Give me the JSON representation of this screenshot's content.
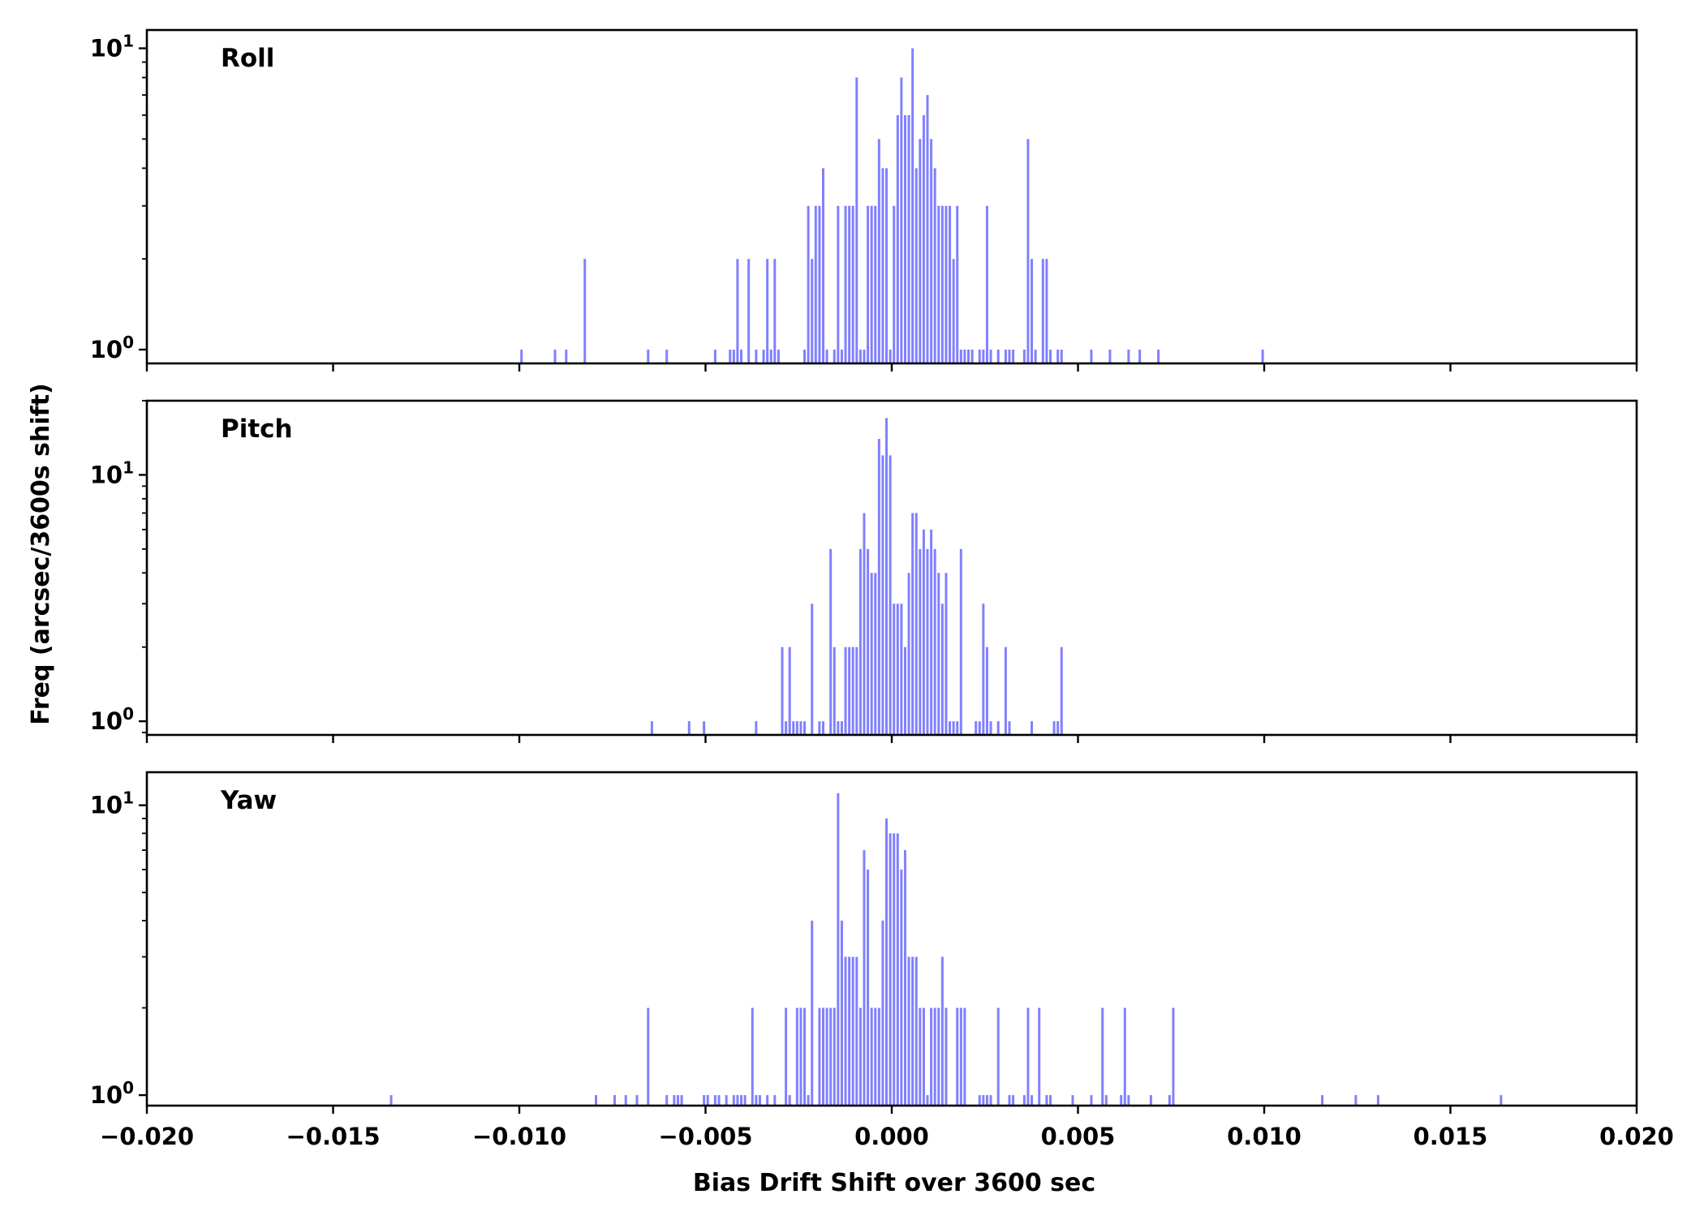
{
  "chart_data": {
    "type": "bar",
    "ylabel": "Freq (arcsec/3600s shift)",
    "xlabel": "Bias Drift Shift over 3600 sec",
    "xlim": [
      -0.02,
      0.02
    ],
    "x_ticks": [
      "−0.020",
      "−0.015",
      "−0.010",
      "−0.005",
      "0.000",
      "0.005",
      "0.010",
      "0.015",
      "0.020"
    ],
    "bin_width": 0.0001,
    "yscale": "log",
    "bar_color": "#8080ff",
    "panels": [
      {
        "name": "Roll",
        "ylim": [
          0.9,
          11.5
        ],
        "y_ticks": [
          {
            "value": 1,
            "exp": "0"
          },
          {
            "value": 10,
            "exp": "1"
          }
        ],
        "bins": [
          [
            -0.01,
            1
          ],
          [
            -0.0091,
            1
          ],
          [
            -0.0088,
            1
          ],
          [
            -0.0083,
            2
          ],
          [
            -0.0066,
            1
          ],
          [
            -0.0061,
            1
          ],
          [
            -0.0048,
            1
          ],
          [
            -0.0044,
            1
          ],
          [
            -0.0043,
            1
          ],
          [
            -0.0042,
            2
          ],
          [
            -0.0041,
            1
          ],
          [
            -0.0039,
            2
          ],
          [
            -0.0037,
            1
          ],
          [
            -0.0035,
            1
          ],
          [
            -0.0034,
            2
          ],
          [
            -0.0033,
            1
          ],
          [
            -0.0032,
            2
          ],
          [
            -0.0031,
            1
          ],
          [
            -0.0024,
            1
          ],
          [
            -0.0023,
            3
          ],
          [
            -0.0022,
            2
          ],
          [
            -0.0021,
            3
          ],
          [
            -0.002,
            3
          ],
          [
            -0.0019,
            4
          ],
          [
            -0.0018,
            1
          ],
          [
            -0.0016,
            1
          ],
          [
            -0.0015,
            3
          ],
          [
            -0.0014,
            1
          ],
          [
            -0.0013,
            3
          ],
          [
            -0.0012,
            3
          ],
          [
            -0.0011,
            3
          ],
          [
            -0.001,
            8
          ],
          [
            -0.0009,
            1
          ],
          [
            -0.0008,
            1
          ],
          [
            -0.0007,
            3
          ],
          [
            -0.0006,
            3
          ],
          [
            -0.0005,
            3
          ],
          [
            -0.0004,
            5
          ],
          [
            -0.0003,
            4
          ],
          [
            -0.0002,
            4
          ],
          [
            -0.0001,
            1
          ],
          [
            0.0,
            3
          ],
          [
            0.0001,
            6
          ],
          [
            0.0002,
            8
          ],
          [
            0.0003,
            6
          ],
          [
            0.0004,
            6
          ],
          [
            0.0005,
            10
          ],
          [
            0.0006,
            4
          ],
          [
            0.0007,
            5
          ],
          [
            0.0008,
            6
          ],
          [
            0.0009,
            7
          ],
          [
            0.001,
            5
          ],
          [
            0.0011,
            4
          ],
          [
            0.0012,
            3
          ],
          [
            0.0013,
            3
          ],
          [
            0.0014,
            3
          ],
          [
            0.0015,
            3
          ],
          [
            0.0016,
            2
          ],
          [
            0.0017,
            3
          ],
          [
            0.0018,
            1
          ],
          [
            0.0019,
            1
          ],
          [
            0.002,
            1
          ],
          [
            0.0021,
            1
          ],
          [
            0.0023,
            1
          ],
          [
            0.0024,
            1
          ],
          [
            0.0025,
            3
          ],
          [
            0.0026,
            1
          ],
          [
            0.0028,
            1
          ],
          [
            0.003,
            1
          ],
          [
            0.0031,
            1
          ],
          [
            0.0032,
            1
          ],
          [
            0.0035,
            1
          ],
          [
            0.0036,
            5
          ],
          [
            0.0037,
            2
          ],
          [
            0.0038,
            1
          ],
          [
            0.004,
            2
          ],
          [
            0.0041,
            2
          ],
          [
            0.0042,
            1
          ],
          [
            0.0044,
            1
          ],
          [
            0.0045,
            1
          ],
          [
            0.0053,
            1
          ],
          [
            0.0058,
            1
          ],
          [
            0.0063,
            1
          ],
          [
            0.0066,
            1
          ],
          [
            0.0071,
            1
          ],
          [
            0.0099,
            1
          ]
        ]
      },
      {
        "name": "Pitch",
        "ylim": [
          0.88,
          20.0
        ],
        "y_ticks": [
          {
            "value": 1,
            "exp": "0"
          },
          {
            "value": 10,
            "exp": "1"
          }
        ],
        "bins": [
          [
            -0.0065,
            1
          ],
          [
            -0.0055,
            1
          ],
          [
            -0.0051,
            1
          ],
          [
            -0.0037,
            1
          ],
          [
            -0.003,
            2
          ],
          [
            -0.0029,
            1
          ],
          [
            -0.0028,
            2
          ],
          [
            -0.0027,
            1
          ],
          [
            -0.0026,
            1
          ],
          [
            -0.0025,
            1
          ],
          [
            -0.0024,
            1
          ],
          [
            -0.0022,
            3
          ],
          [
            -0.002,
            1
          ],
          [
            -0.0019,
            1
          ],
          [
            -0.0017,
            5
          ],
          [
            -0.0016,
            2
          ],
          [
            -0.0015,
            1
          ],
          [
            -0.0014,
            1
          ],
          [
            -0.0013,
            2
          ],
          [
            -0.0012,
            2
          ],
          [
            -0.0011,
            2
          ],
          [
            -0.001,
            2
          ],
          [
            -0.0009,
            5
          ],
          [
            -0.0008,
            7
          ],
          [
            -0.0007,
            5
          ],
          [
            -0.0006,
            4
          ],
          [
            -0.0005,
            4
          ],
          [
            -0.0004,
            14
          ],
          [
            -0.0003,
            12
          ],
          [
            -0.0002,
            17
          ],
          [
            -0.0001,
            12
          ],
          [
            0.0,
            3
          ],
          [
            0.0001,
            3
          ],
          [
            0.0002,
            3
          ],
          [
            0.0003,
            2
          ],
          [
            0.0004,
            4
          ],
          [
            0.0005,
            7
          ],
          [
            0.0006,
            7
          ],
          [
            0.0007,
            5
          ],
          [
            0.0008,
            6
          ],
          [
            0.0009,
            5
          ],
          [
            0.001,
            6
          ],
          [
            0.0011,
            5
          ],
          [
            0.0012,
            4
          ],
          [
            0.0013,
            3
          ],
          [
            0.0014,
            4
          ],
          [
            0.0015,
            1
          ],
          [
            0.0016,
            1
          ],
          [
            0.0017,
            1
          ],
          [
            0.0018,
            5
          ],
          [
            0.0022,
            1
          ],
          [
            0.0023,
            1
          ],
          [
            0.0024,
            3
          ],
          [
            0.0025,
            2
          ],
          [
            0.0026,
            1
          ],
          [
            0.0028,
            1
          ],
          [
            0.003,
            2
          ],
          [
            0.0031,
            1
          ],
          [
            0.0037,
            1
          ],
          [
            0.0043,
            1
          ],
          [
            0.0044,
            1
          ],
          [
            0.0045,
            2
          ]
        ]
      },
      {
        "name": "Yaw",
        "ylim": [
          0.92,
          13.0
        ],
        "y_ticks": [
          {
            "value": 1,
            "exp": "0"
          },
          {
            "value": 10,
            "exp": "1"
          }
        ],
        "bins": [
          [
            -0.0135,
            1
          ],
          [
            -0.008,
            1
          ],
          [
            -0.0075,
            1
          ],
          [
            -0.0072,
            1
          ],
          [
            -0.0069,
            1
          ],
          [
            -0.0066,
            2
          ],
          [
            -0.0061,
            1
          ],
          [
            -0.0059,
            1
          ],
          [
            -0.0058,
            1
          ],
          [
            -0.0057,
            1
          ],
          [
            -0.0051,
            1
          ],
          [
            -0.005,
            1
          ],
          [
            -0.0048,
            1
          ],
          [
            -0.0047,
            1
          ],
          [
            -0.0045,
            1
          ],
          [
            -0.0043,
            1
          ],
          [
            -0.0042,
            1
          ],
          [
            -0.0041,
            1
          ],
          [
            -0.004,
            1
          ],
          [
            -0.0038,
            2
          ],
          [
            -0.0037,
            1
          ],
          [
            -0.0036,
            1
          ],
          [
            -0.0034,
            1
          ],
          [
            -0.0032,
            1
          ],
          [
            -0.0029,
            2
          ],
          [
            -0.0028,
            1
          ],
          [
            -0.0026,
            2
          ],
          [
            -0.0025,
            2
          ],
          [
            -0.0024,
            2
          ],
          [
            -0.0023,
            1
          ],
          [
            -0.0022,
            4
          ],
          [
            -0.002,
            2
          ],
          [
            -0.0019,
            2
          ],
          [
            -0.0018,
            2
          ],
          [
            -0.0017,
            2
          ],
          [
            -0.0016,
            2
          ],
          [
            -0.0015,
            11
          ],
          [
            -0.0014,
            4
          ],
          [
            -0.0013,
            3
          ],
          [
            -0.0012,
            3
          ],
          [
            -0.0011,
            3
          ],
          [
            -0.001,
            3
          ],
          [
            -0.0009,
            2
          ],
          [
            -0.0008,
            7
          ],
          [
            -0.0007,
            6
          ],
          [
            -0.0006,
            2
          ],
          [
            -0.0005,
            2
          ],
          [
            -0.0004,
            2
          ],
          [
            -0.0003,
            4
          ],
          [
            -0.0002,
            9
          ],
          [
            -0.0001,
            8
          ],
          [
            0.0,
            8
          ],
          [
            0.0001,
            8
          ],
          [
            0.0002,
            6
          ],
          [
            0.0003,
            7
          ],
          [
            0.0004,
            3
          ],
          [
            0.0005,
            3
          ],
          [
            0.0006,
            3
          ],
          [
            0.0007,
            2
          ],
          [
            0.0008,
            2
          ],
          [
            0.0009,
            1
          ],
          [
            0.001,
            2
          ],
          [
            0.0011,
            2
          ],
          [
            0.0012,
            2
          ],
          [
            0.0013,
            3
          ],
          [
            0.0014,
            2
          ],
          [
            0.0017,
            2
          ],
          [
            0.0018,
            2
          ],
          [
            0.0019,
            2
          ],
          [
            0.0023,
            1
          ],
          [
            0.0024,
            1
          ],
          [
            0.0025,
            1
          ],
          [
            0.0026,
            1
          ],
          [
            0.0028,
            2
          ],
          [
            0.0031,
            1
          ],
          [
            0.0032,
            1
          ],
          [
            0.0035,
            1
          ],
          [
            0.0036,
            2
          ],
          [
            0.0037,
            1
          ],
          [
            0.0039,
            2
          ],
          [
            0.0041,
            1
          ],
          [
            0.0042,
            1
          ],
          [
            0.0048,
            1
          ],
          [
            0.0053,
            1
          ],
          [
            0.0056,
            2
          ],
          [
            0.0057,
            1
          ],
          [
            0.0061,
            1
          ],
          [
            0.0062,
            2
          ],
          [
            0.0063,
            1
          ],
          [
            0.0069,
            1
          ],
          [
            0.0074,
            1
          ],
          [
            0.0075,
            2
          ],
          [
            0.0115,
            1
          ],
          [
            0.0124,
            1
          ],
          [
            0.013,
            1
          ],
          [
            0.0163,
            1
          ]
        ]
      }
    ]
  }
}
